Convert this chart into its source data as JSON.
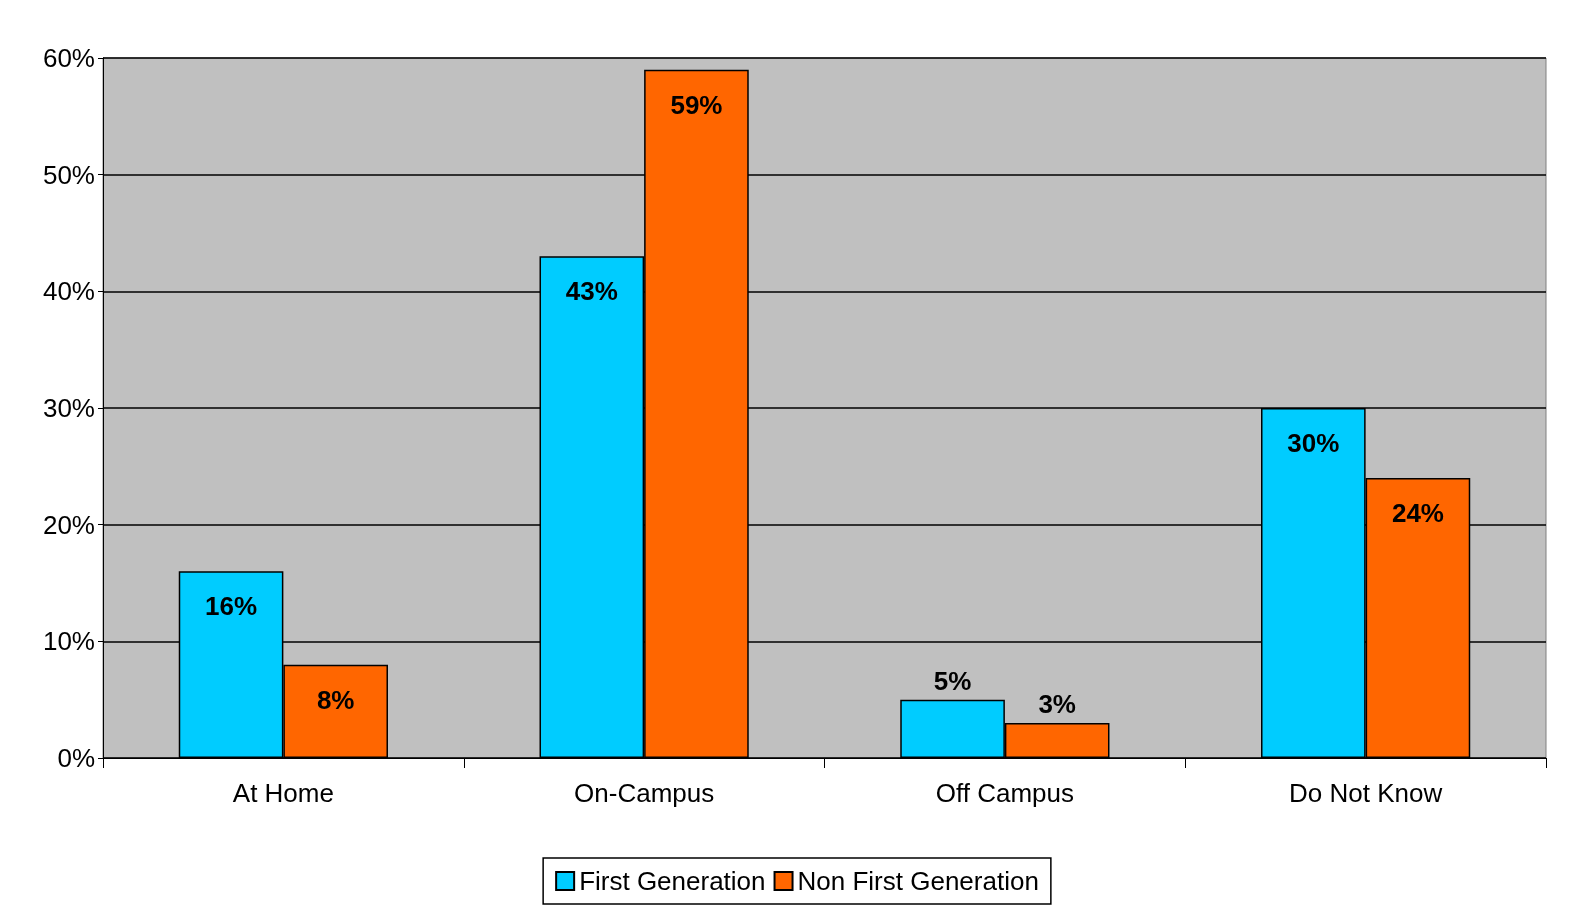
{
  "chart_data": {
    "type": "bar",
    "categories": [
      "At Home",
      "On-Campus",
      "Off Campus",
      "Do Not Know"
    ],
    "series": [
      {
        "name": "First Generation",
        "color": "#00ccff",
        "values": [
          16,
          43,
          5,
          30
        ],
        "value_labels": [
          "16%",
          "43%",
          "5%",
          "30%"
        ]
      },
      {
        "name": "Non First Generation",
        "color": "#ff6600",
        "values": [
          8,
          59,
          3,
          24
        ],
        "value_labels": [
          "8%",
          "59%",
          "3%",
          "24%"
        ]
      }
    ],
    "ylim": [
      0,
      60
    ],
    "yticks": [
      {
        "value": 0,
        "label": "0%"
      },
      {
        "value": 10,
        "label": "10%"
      },
      {
        "value": 20,
        "label": "20%"
      },
      {
        "value": 30,
        "label": "30%"
      },
      {
        "value": 40,
        "label": "40%"
      },
      {
        "value": 50,
        "label": "50%"
      },
      {
        "value": 60,
        "label": "60%"
      }
    ],
    "grid": "y",
    "legend": "bottom"
  }
}
